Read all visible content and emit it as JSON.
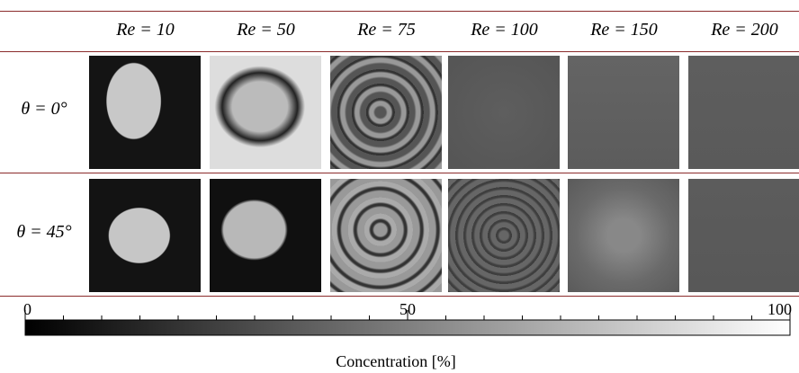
{
  "table": {
    "columns": [
      "Re = 10",
      "Re = 50",
      "Re = 75",
      "Re = 100",
      "Re = 150",
      "Re = 200"
    ],
    "rows": [
      "θ = 0°",
      "θ = 45°"
    ]
  },
  "colorbar": {
    "label": "Concentration [%]",
    "lim": [
      0,
      100
    ],
    "ticks": [
      0,
      50,
      100
    ]
  }
}
